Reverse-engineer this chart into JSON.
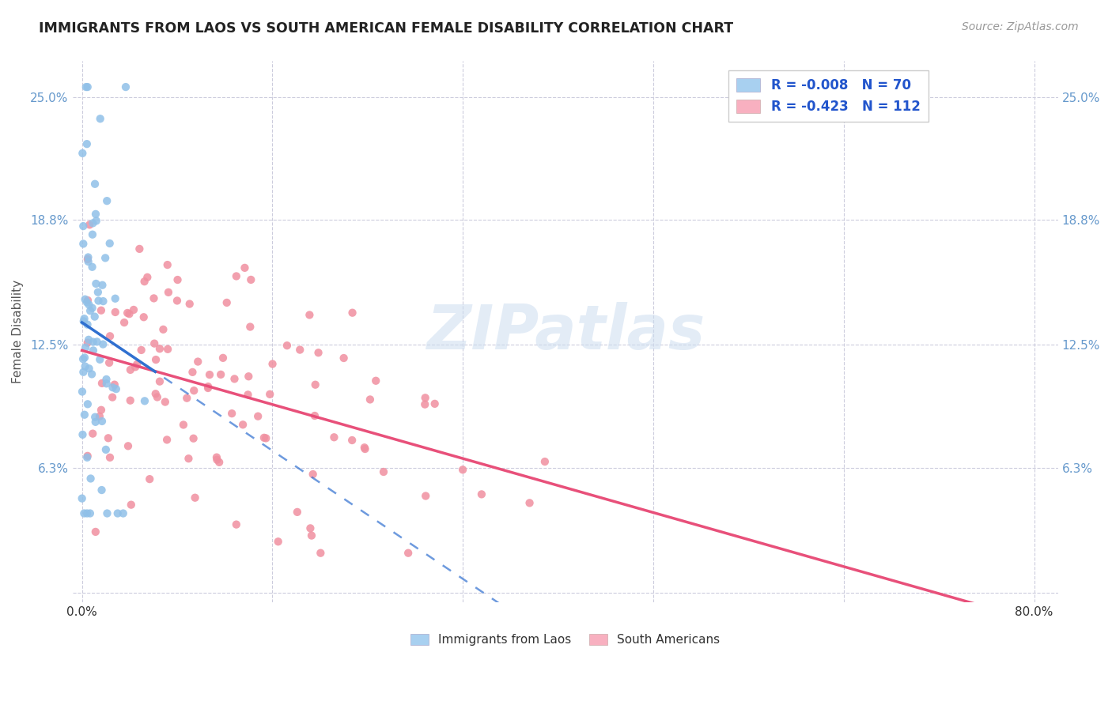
{
  "title": "IMMIGRANTS FROM LAOS VS SOUTH AMERICAN FEMALE DISABILITY CORRELATION CHART",
  "source": "Source: ZipAtlas.com",
  "ylabel": "Female Disability",
  "y_ticks": [
    0.0,
    0.063,
    0.125,
    0.188,
    0.25
  ],
  "y_tick_labels": [
    "",
    "6.3%",
    "12.5%",
    "18.8%",
    "25.0%"
  ],
  "x_ticks": [
    0.0,
    0.16,
    0.32,
    0.48,
    0.64,
    0.8
  ],
  "x_tick_labels": [
    "0.0%",
    "",
    "",
    "",
    "",
    "80.0%"
  ],
  "laos_color": "#90c0e8",
  "south_american_color": "#f090a0",
  "laos_legend_color": "#a8d0f0",
  "south_american_legend_color": "#f8b0c0",
  "laos_line_color": "#3070d0",
  "south_american_line_color": "#e8507a",
  "watermark": "ZIPatlas",
  "legend_label_color": "#2255cc",
  "tick_color": "#6699cc",
  "laos_R": "-0.008",
  "laos_N": "70",
  "sa_R": "-0.423",
  "sa_N": "112",
  "legend_laos": "R = -0.008   N = 70",
  "legend_sa": "R = -0.423   N = 112",
  "bottom_legend_laos": "Immigrants from Laos",
  "bottom_legend_sa": "South Americans"
}
